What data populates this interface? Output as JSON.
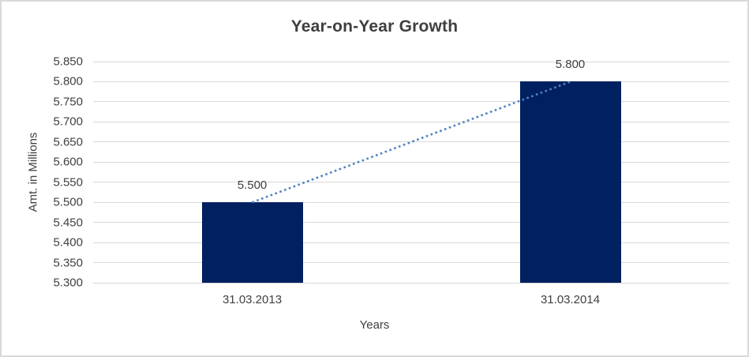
{
  "chart_data": {
    "type": "bar",
    "title": "Year-on-Year Growth",
    "xlabel": "Years",
    "ylabel": "Amt. in Millions",
    "categories": [
      "31.03.2013",
      "31.03.2014"
    ],
    "values": [
      5.5,
      5.8
    ],
    "value_labels": [
      "5.500",
      "5.800"
    ],
    "ytick_labels": [
      "5.850",
      "5.800",
      "5.750",
      "5.700",
      "5.650",
      "5.600",
      "5.550",
      "5.500",
      "5.450",
      "5.400",
      "5.350",
      "5.300"
    ],
    "ylim": [
      5.3,
      5.85
    ],
    "grid": true,
    "legend": "none",
    "trendline": {
      "type": "linear",
      "style": "dotted",
      "color": "#4e82c0",
      "connects_values": [
        5.5,
        5.8
      ]
    },
    "colors": {
      "bar": "#002060",
      "gridline": "#d9d9d9",
      "text": "#404040",
      "title_text": "#3f3f3f",
      "background": "#ffffff",
      "frame_border": "#d9d9d9"
    }
  }
}
